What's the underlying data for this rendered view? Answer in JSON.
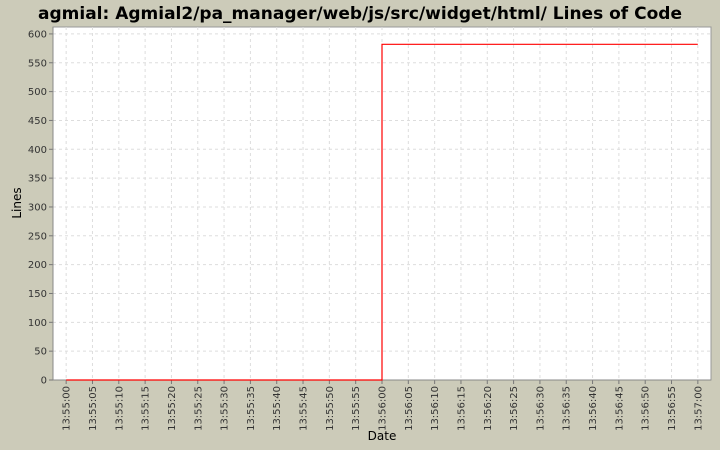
{
  "chart_data": {
    "type": "line",
    "title": "agmial: Agmial2/pa_manager/web/js/src/widget/html/ Lines of Code",
    "xlabel": "Date",
    "ylabel": "Lines",
    "ylim": [
      0,
      612
    ],
    "yticks": [
      0,
      50,
      100,
      150,
      200,
      250,
      300,
      350,
      400,
      450,
      500,
      550,
      600
    ],
    "xtick_labels": [
      "13:55:00",
      "13:55:05",
      "13:55:10",
      "13:55:15",
      "13:55:20",
      "13:55:25",
      "13:55:30",
      "13:55:35",
      "13:55:40",
      "13:55:45",
      "13:55:50",
      "13:55:55",
      "13:56:00",
      "13:56:05",
      "13:56:10",
      "13:56:15",
      "13:56:20",
      "13:56:25",
      "13:56:30",
      "13:56:35",
      "13:56:40",
      "13:56:45",
      "13:56:50",
      "13:56:55",
      "13:57:00"
    ],
    "xlim": [
      "13:54:57.5",
      "13:57:02.5"
    ],
    "grid": true,
    "step": true,
    "series": [
      {
        "color": "#ff0000",
        "points": [
          [
            "13:55:00",
            0
          ],
          [
            "13:56:00",
            0
          ],
          [
            "13:56:00",
            582
          ],
          [
            "13:57:00",
            582
          ]
        ]
      }
    ],
    "colors": {
      "background": "#cccbb9",
      "plot": "#ffffff",
      "grid": "#dddddd",
      "line": "#ff0000"
    }
  }
}
